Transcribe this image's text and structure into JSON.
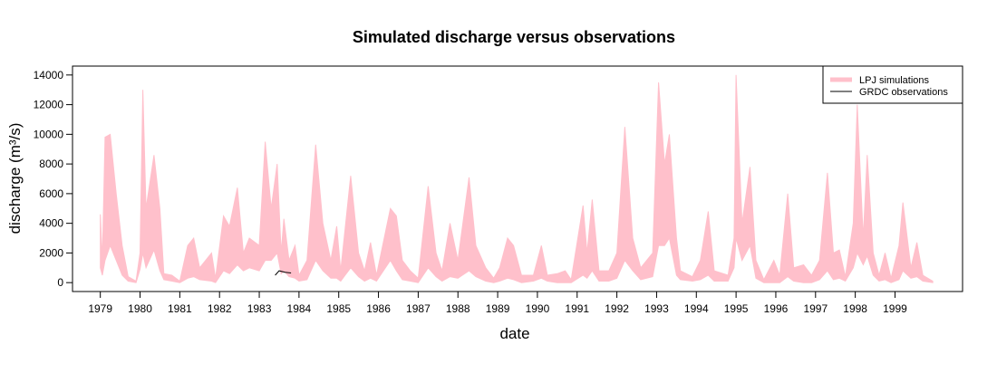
{
  "chart_data": {
    "type": "band",
    "title": "Simulated discharge versus observations",
    "x_label": "date",
    "y_label": "discharge (m³/s)",
    "xlim": [
      1978.3,
      2000.7
    ],
    "ylim": [
      -600,
      14600
    ],
    "xticks": [
      1979,
      1980,
      1981,
      1982,
      1983,
      1984,
      1985,
      1986,
      1987,
      1988,
      1989,
      1990,
      1991,
      1992,
      1993,
      1994,
      1995,
      1996,
      1997,
      1998,
      1999
    ],
    "yticks": [
      0,
      2000,
      4000,
      6000,
      8000,
      10000,
      12000,
      14000
    ],
    "legend": "topright",
    "x": [
      1979.0,
      1979.05,
      1979.12,
      1979.25,
      1979.4,
      1979.55,
      1979.7,
      1979.9,
      1980.0,
      1980.07,
      1980.15,
      1980.35,
      1980.5,
      1980.6,
      1980.8,
      1981.0,
      1981.2,
      1981.35,
      1981.5,
      1981.8,
      1981.9,
      1982.1,
      1982.25,
      1982.45,
      1982.6,
      1982.75,
      1983.0,
      1983.15,
      1983.3,
      1983.45,
      1983.55,
      1983.62,
      1983.75,
      1983.9,
      1984.0,
      1984.2,
      1984.42,
      1984.6,
      1984.8,
      1984.95,
      1985.05,
      1985.3,
      1985.5,
      1985.65,
      1985.8,
      1985.95,
      1986.3,
      1986.45,
      1986.6,
      1986.8,
      1987.0,
      1987.25,
      1987.45,
      1987.6,
      1987.8,
      1988.0,
      1988.28,
      1988.45,
      1988.7,
      1988.9,
      1989.05,
      1989.25,
      1989.4,
      1989.6,
      1989.9,
      1990.1,
      1990.25,
      1990.5,
      1990.7,
      1990.85,
      1991.15,
      1991.25,
      1991.38,
      1991.55,
      1991.8,
      1992.0,
      1992.2,
      1992.4,
      1992.6,
      1992.9,
      1993.05,
      1993.2,
      1993.32,
      1993.5,
      1993.6,
      1993.9,
      1994.1,
      1994.3,
      1994.45,
      1994.8,
      1994.95,
      1995.0,
      1995.15,
      1995.35,
      1995.5,
      1995.7,
      1995.95,
      1996.1,
      1996.3,
      1996.45,
      1996.7,
      1996.9,
      1997.1,
      1997.3,
      1997.45,
      1997.6,
      1997.75,
      1997.95,
      1998.05,
      1998.2,
      1998.3,
      1998.45,
      1998.6,
      1998.75,
      1998.9,
      1999.1,
      1999.2,
      1999.4,
      1999.55,
      1999.7,
      1999.95
    ],
    "series": [
      {
        "name": "LPJ simulations",
        "color": "#ffc0cb",
        "values": [
          4600,
          1500,
          9800,
          10000,
          6000,
          2500,
          400,
          100,
          2000,
          13000,
          5000,
          8600,
          5000,
          600,
          500,
          100,
          2500,
          3000,
          1000,
          2000,
          300,
          4500,
          3800,
          6400,
          2000,
          3000,
          2500,
          9500,
          5000,
          8000,
          2000,
          4300,
          1500,
          2500,
          500,
          1500,
          9300,
          4000,
          1500,
          3800,
          800,
          7200,
          2000,
          800,
          2700,
          500,
          5000,
          4500,
          1500,
          800,
          300,
          6500,
          2000,
          800,
          4000,
          1500,
          7100,
          2500,
          1000,
          300,
          1000,
          3000,
          2500,
          500,
          500,
          2500,
          500,
          600,
          800,
          200,
          5200,
          2000,
          5600,
          800,
          800,
          2000,
          10500,
          3000,
          1000,
          2000,
          13500,
          8000,
          10000,
          3000,
          800,
          400,
          1500,
          4800,
          800,
          500,
          3000,
          14000,
          4000,
          7800,
          1500,
          200,
          1500,
          500,
          6000,
          1000,
          1200,
          500,
          1500,
          7400,
          2000,
          2200,
          400,
          4000,
          12000,
          3000,
          8600,
          2000,
          500,
          2000,
          300,
          2500,
          5400,
          1000,
          2700,
          500,
          100
        ],
        "lower": [
          1000,
          500,
          1500,
          2500,
          1500,
          500,
          100,
          0,
          900,
          2000,
          1000,
          2200,
          800,
          200,
          100,
          0,
          300,
          400,
          200,
          100,
          0,
          800,
          600,
          1200,
          800,
          1000,
          800,
          1500,
          1500,
          2000,
          600,
          800,
          400,
          300,
          100,
          200,
          1500,
          800,
          300,
          300,
          100,
          1000,
          400,
          100,
          300,
          100,
          1500,
          800,
          200,
          100,
          0,
          1000,
          400,
          100,
          400,
          300,
          800,
          400,
          100,
          0,
          100,
          300,
          200,
          0,
          100,
          300,
          100,
          0,
          0,
          0,
          500,
          300,
          800,
          100,
          100,
          300,
          1500,
          800,
          200,
          400,
          2500,
          2500,
          3000,
          500,
          200,
          100,
          200,
          500,
          100,
          100,
          1000,
          3000,
          1500,
          2500,
          300,
          0,
          0,
          0,
          400,
          100,
          0,
          0,
          200,
          800,
          200,
          300,
          100,
          1000,
          2000,
          1200,
          1800,
          500,
          100,
          200,
          0,
          200,
          800,
          300,
          400,
          100,
          0
        ]
      },
      {
        "name": "GRDC observations",
        "color": "#000000",
        "x": [
          1983.4,
          1983.5,
          1983.65,
          1983.8
        ],
        "values": [
          500,
          800,
          700,
          650
        ]
      }
    ]
  }
}
